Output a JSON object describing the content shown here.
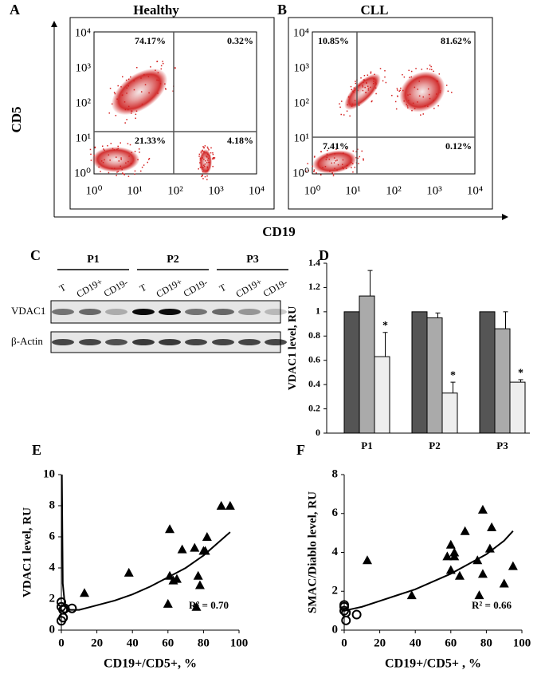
{
  "panel_labels": [
    "A",
    "B",
    "C",
    "D",
    "E",
    "F"
  ],
  "flow": {
    "y_label": "CD5",
    "x_label": "CD19",
    "ticks": [
      "10⁰",
      "10¹",
      "10²",
      "10³",
      "10⁴"
    ],
    "plots": [
      {
        "title": "Healthy",
        "quadrants": [
          "74.17%",
          "0.32%",
          "21.33%",
          "4.18%"
        ]
      },
      {
        "title": "CLL",
        "quadrants": [
          "10.85%",
          "81.62%",
          "7.41%",
          "0.12%"
        ]
      }
    ]
  },
  "blot": {
    "groups": [
      "P1",
      "P2",
      "P3"
    ],
    "lanes": [
      "T",
      "CD19+",
      "CD19-"
    ],
    "rows": [
      "VDAC1",
      "β-Actin"
    ]
  },
  "chart_data": [
    {
      "type": "bar",
      "y_label": "VDAC1 level, RU",
      "categories": [
        "P1",
        "P2",
        "P3"
      ],
      "ylim": [
        0,
        1.4
      ],
      "yticks": [
        0,
        0.2,
        0.4,
        0.6,
        0.8,
        1,
        1.2,
        1.4
      ],
      "series": [
        {
          "color": "#555555",
          "values": [
            1,
            1,
            1
          ]
        },
        {
          "color": "#aaaaaa",
          "values": [
            1.13,
            0.95,
            0.86
          ],
          "errors": [
            0.21,
            0.04,
            0.14
          ]
        },
        {
          "color": "#eeeeee",
          "values": [
            0.63,
            0.33,
            0.42
          ],
          "errors": [
            0.2,
            0.09,
            0.02
          ],
          "significance": [
            "*",
            "*",
            "*"
          ]
        }
      ]
    },
    {
      "type": "scatter",
      "y_label": "VDAC1 level, RU",
      "x_label": "CD19+/CD5+, %",
      "annotation": "R² = 0.70",
      "xlim": [
        0,
        100
      ],
      "xticks": [
        0,
        20,
        40,
        60,
        80,
        100
      ],
      "ylim": [
        0,
        10
      ],
      "yticks": [
        0,
        2,
        4,
        6,
        8,
        10
      ],
      "series": [
        {
          "marker": "triangle",
          "color": "#000000",
          "x": [
            13,
            38,
            60,
            61,
            61,
            63,
            65,
            68,
            75,
            76,
            77,
            78,
            80,
            81,
            82,
            90,
            95
          ],
          "values": [
            2.4,
            3.7,
            1.7,
            6.5,
            3.5,
            3.2,
            3.3,
            5.2,
            5.3,
            1.5,
            3.5,
            2.9,
            5.1,
            5.1,
            6.0,
            8.0,
            8.0
          ]
        },
        {
          "marker": "circle",
          "color": "#000000",
          "x": [
            0,
            0,
            1,
            1,
            0,
            2,
            6
          ],
          "values": [
            1.8,
            1.5,
            1.3,
            0.8,
            0.6,
            1.4,
            1.4
          ]
        },
        {
          "marker": "line",
          "color": "#000000",
          "x": [
            0.3,
            0.8,
            2,
            5,
            10,
            20,
            30,
            40,
            50,
            60,
            70,
            80,
            90,
            95
          ],
          "values": [
            10,
            3,
            1.6,
            1.3,
            1.3,
            1.6,
            1.9,
            2.3,
            2.8,
            3.4,
            4.0,
            4.8,
            5.8,
            6.3
          ]
        }
      ]
    },
    {
      "type": "scatter",
      "y_label": "SMAC/Diablo level, RU",
      "x_label": "CD19+/CD5+ , %",
      "annotation": "R² = 0.66",
      "xlim": [
        0,
        100
      ],
      "xticks": [
        0,
        20,
        40,
        60,
        80,
        100
      ],
      "ylim": [
        0,
        8
      ],
      "yticks": [
        0,
        2,
        4,
        6,
        8
      ],
      "series": [
        {
          "marker": "triangle",
          "color": "#000000",
          "x": [
            13,
            38,
            58,
            60,
            60,
            62,
            62,
            65,
            68,
            75,
            76,
            78,
            78,
            82,
            83,
            90,
            95
          ],
          "values": [
            3.6,
            1.8,
            3.8,
            4.4,
            3.1,
            3.8,
            4.0,
            2.8,
            5.1,
            3.6,
            1.8,
            6.2,
            2.9,
            4.2,
            5.3,
            2.4,
            3.3
          ]
        },
        {
          "marker": "circle",
          "color": "#000000",
          "x": [
            0,
            0,
            1,
            1,
            7,
            0
          ],
          "values": [
            1.2,
            1.0,
            0.9,
            0.5,
            0.8,
            1.3
          ]
        },
        {
          "marker": "line",
          "color": "#000000",
          "x": [
            0,
            5,
            10,
            20,
            30,
            40,
            50,
            60,
            70,
            80,
            90,
            95
          ],
          "values": [
            1.0,
            1.1,
            1.2,
            1.5,
            1.8,
            2.1,
            2.5,
            2.9,
            3.4,
            3.9,
            4.6,
            5.1
          ]
        }
      ]
    }
  ]
}
